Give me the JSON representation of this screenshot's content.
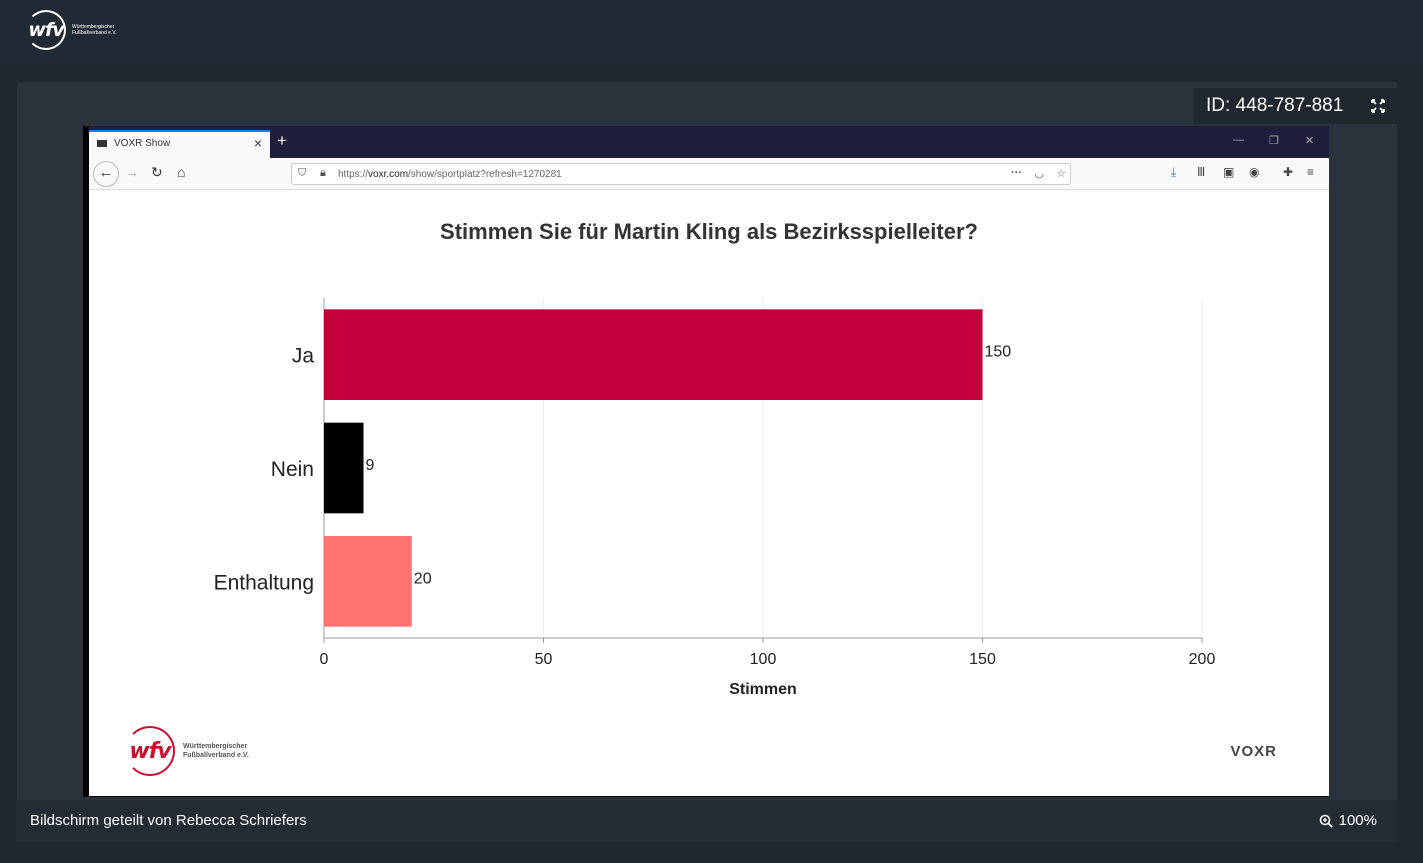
{
  "app": {
    "logo_text": "wfv",
    "logo_subtitle": "Württembergischer Fußballverband e.V."
  },
  "meeting": {
    "id_label": "ID: 448-787-881",
    "shared_by": "Bildschirm geteilt von Rebecca Schriefers",
    "zoom": "100%"
  },
  "browser": {
    "tab_title": "VOXR Show",
    "new_tab": "+",
    "url_prefix": "https://",
    "url_domain": "voxr.com",
    "url_path": "/show/sportplatz?refresh=1270281"
  },
  "slide": {
    "footer_logo_text": "wfv",
    "footer_logo_subtitle": "Württembergischer Fußballverband e.V.",
    "brand": "VOXR"
  },
  "colors": {
    "ja": "#c4003c",
    "nein": "#000000",
    "enthaltung": "#ff7272"
  },
  "chart_data": {
    "type": "bar",
    "orientation": "horizontal",
    "title": "Stimmen Sie für Martin Kling als Bezirksspielleiter?",
    "categories": [
      "Ja",
      "Nein",
      "Enthaltung"
    ],
    "values": [
      150,
      9,
      20
    ],
    "xlabel": "Stimmen",
    "ylabel": "",
    "xlim": [
      0,
      200
    ],
    "xticks": [
      0,
      50,
      100,
      150,
      200
    ],
    "grid": true
  }
}
